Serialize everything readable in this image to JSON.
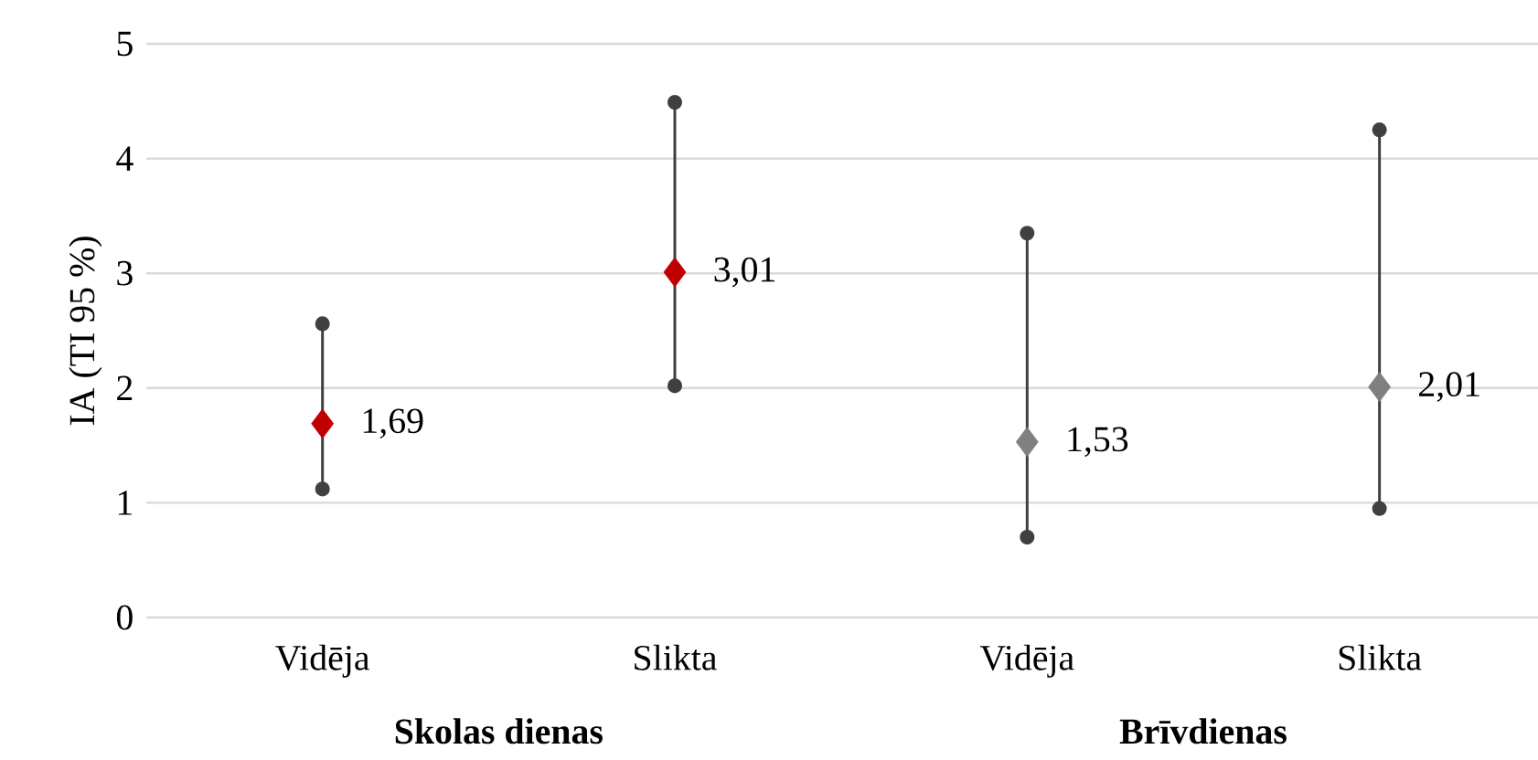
{
  "chart_data": {
    "type": "scatter",
    "ylabel": "IA (TI 95 %)",
    "categories": [
      "Vidēja",
      "Slikta",
      "Vidēja",
      "Slikta"
    ],
    "values": [
      1.69,
      3.01,
      1.53,
      2.01
    ],
    "value_labels": [
      "1,69",
      "3,01",
      "1,53",
      "2,01"
    ],
    "errors": [
      [
        1.12,
        2.56
      ],
      [
        2.02,
        4.49
      ],
      [
        0.7,
        3.35
      ],
      [
        0.95,
        4.25
      ]
    ],
    "colors": [
      "#c00000",
      "#c00000",
      "#808080",
      "#808080"
    ],
    "marker": "diamond",
    "ylim": [
      0,
      5
    ],
    "yticks": [
      0,
      1,
      2,
      3,
      4,
      5
    ],
    "grid": "y",
    "annotations": [
      "Skolas dienas",
      "Brīvdienas"
    ]
  }
}
